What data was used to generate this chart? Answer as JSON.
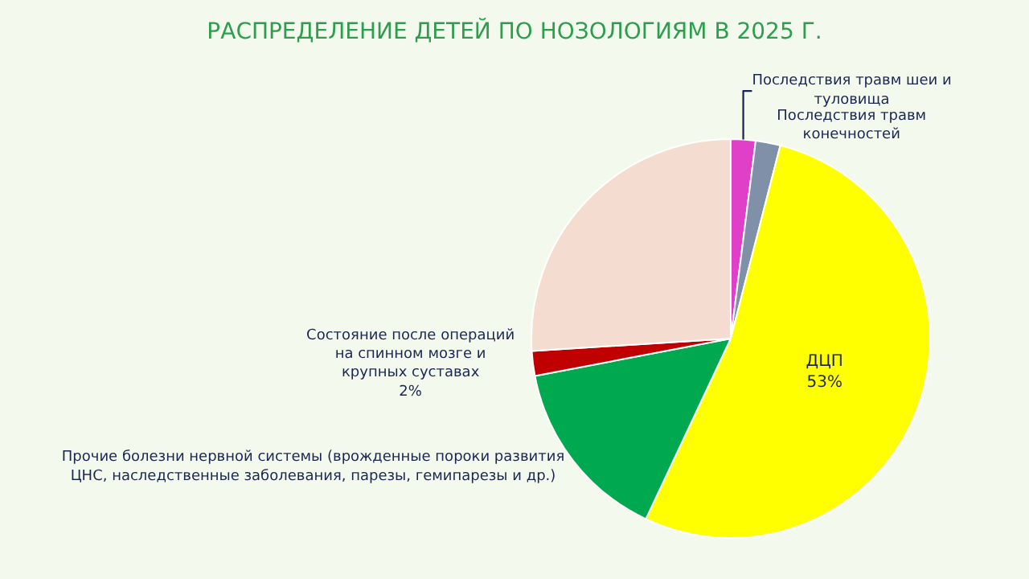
{
  "chart_data": {
    "type": "pie",
    "title": "РАСПРЕДЕЛЕНИЕ ДЕТЕЙ ПО НОЗОЛОГИЯМ В 2025 Г.",
    "categories": [
      "Последствия травм шеи и туловища",
      "Последствия травм конечностей",
      "ДЦП",
      "Прочие болезни нервной системы (врожденные пороки развития ЦНС, наследственные заболевания, парезы, гемипарезы и др.)",
      "Состояние после операций на спинном мозге и крупных суставах",
      null
    ],
    "values": [
      2,
      2,
      53,
      15,
      2,
      26
    ],
    "colors": [
      "#e040c8",
      "#8090a8",
      "#ffff00",
      "#00a850",
      "#c00000",
      "#f5dcd0"
    ],
    "value_labels": [
      null,
      null,
      "53%",
      null,
      "2%",
      null
    ]
  }
}
